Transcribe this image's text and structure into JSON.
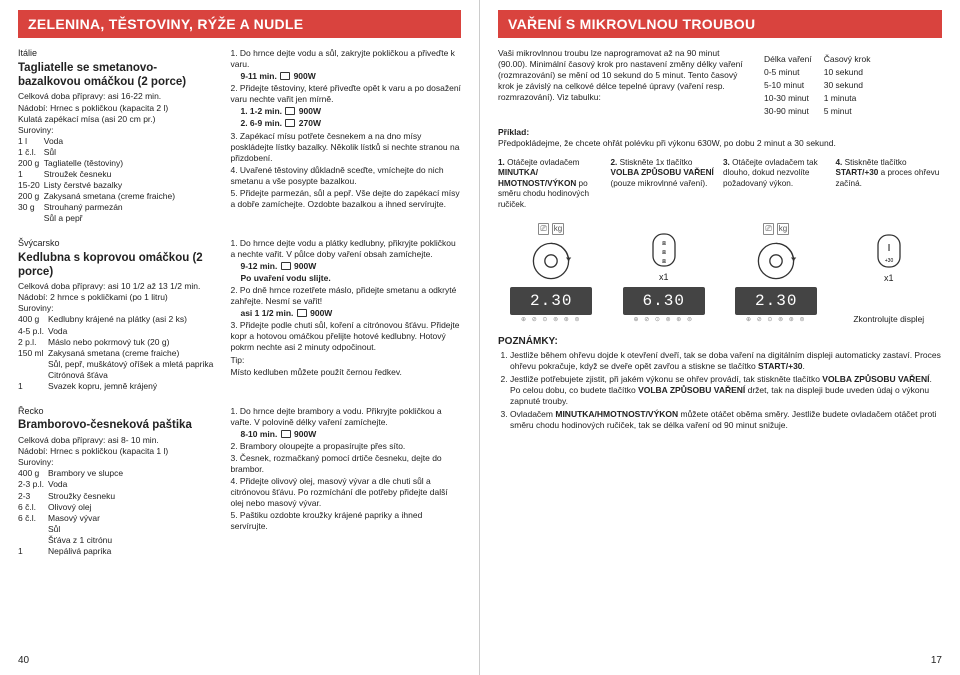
{
  "left": {
    "header": "ZELENINA, TĚSTOVINY, RÝŽE A NUDLE",
    "page_number": "40",
    "recipes": [
      {
        "country": "Itálie",
        "title": "Tagliatelle se smetanovo-bazalkovou omáčkou (2 porce)",
        "prep": "Celková doba přípravy: asi 16-22 min.",
        "tools": "Nádobí: Hrnec s pokličkou (kapacita 2 l)\n     Kulatá zapékací mísa (asi 20 cm pr.)",
        "ing_label": "Suroviny:",
        "ingredients": [
          [
            "1 l",
            "Voda"
          ],
          [
            "1 č.l.",
            "Sůl"
          ],
          [
            "200 g",
            "Tagliatelle (těstoviny)"
          ],
          [
            "1",
            "Stroužek česneku"
          ],
          [
            "15-20",
            "Listy čerstvé bazalky"
          ],
          [
            "200 g",
            "Zakysaná smetana (creme fraiche)"
          ],
          [
            "30 g",
            "Strouhaný parmezán"
          ],
          [
            "",
            "Sůl a pepř"
          ]
        ],
        "steps": [
          "1. Do hrnce dejte vodu a sůl, zakryjte pokličkou a přiveďte k varu.",
          "   9-11 min.  ⧈ 900W",
          "2. Přidejte těstoviny, které přiveďte opět  k varu a po dosažení varu nechte vařit jen mírně.",
          "   1. 1-2 min.  ⧈ 900W",
          "   2. 6-9 min.  ⧈ 270W",
          "3. Zapékací mísu potřete česnekem a na dno mísy poskládejte lístky bazalky. Několik lístků si nechte stranou na přizdobení.",
          "4. Uvařené těstoviny důkladně sceďte, vmíchejte do nich smetanu a vše posypte bazalkou.",
          "5. Přidejte parmezán, sůl a pepř. Vše dejte do zapékací mísy a dobře zamíchejte. Ozdobte bazalkou a ihned servírujte."
        ]
      },
      {
        "country": "Švýcarsko",
        "title": "Kedlubna s koprovou omáčkou (2 porce)",
        "prep": "Celková doba přípravy: asi 10 1/2 až 13 1/2 min.",
        "tools": "Nádobí: 2 hrnce s pokličkami (po 1 litru)",
        "ing_label": "Suroviny:",
        "ingredients": [
          [
            "400 g",
            "Kedlubny krájené na plátky (asi 2 ks)"
          ],
          [
            "4-5 p.l.",
            "Voda"
          ],
          [
            "2 p.l.",
            "Máslo nebo pokrmový tuk (20 g)"
          ],
          [
            "150 ml",
            "Zakysaná smetana (creme fraiche)"
          ],
          [
            "",
            "Sůl, pepř, muškátový oříšek a mletá paprika"
          ],
          [
            "",
            "Citrónová šťáva"
          ],
          [
            "1",
            "Svazek kopru, jemně krájený"
          ]
        ],
        "steps": [
          "1. Do hrnce dejte vodu a plátky kedlubny, přikryjte pokličkou a nechte vařit. V půlce doby vaření obsah zamíchejte.",
          "   9-12 min.  ⧈ 900W",
          "   Po uvaření vodu slijte.",
          "2. Po dně hrnce rozetřete máslo, přidejte smetanu a odkryté zahřejte. Nesmí se vařit!",
          "   asi 1 1/2 min.  ⧈ 900W",
          "3. Přidejte podle chuti sůl, koření a citrónovou šťávu. Přidejte kopr a hotovou omáčkou přelijte hotové kedlubny. Hotový pokrm nechte asi 2 minuty odpočinout.",
          "Tip:",
          "Místo kedluben můžete použít černou ředkev."
        ]
      },
      {
        "country": "Řecko",
        "title": "Bramborovo-česneková paštika",
        "prep": "Celková doba přípravy: asi 8- 10 min.",
        "tools": "Nádobí: Hrnec s pokličkou (kapacita 1 l)",
        "ing_label": "Suroviny:",
        "ingredients": [
          [
            "400 g",
            "Brambory ve slupce"
          ],
          [
            "2-3 p.l.",
            "Voda"
          ],
          [
            "2-3",
            "Stroužky česneku"
          ],
          [
            "6 č.l.",
            "Olivový olej"
          ],
          [
            "6 č.l.",
            "Masový vývar"
          ],
          [
            "",
            "Sůl"
          ],
          [
            "",
            "Šťáva z 1 citrónu"
          ],
          [
            "1",
            "Nepálivá paprika"
          ]
        ],
        "steps": [
          "1. Do hrnce dejte brambory a vodu. Přikryjte pokličkou a vařte. V polovině délky vaření zamíchejte.",
          "   8-10 min.  ⧈ 900W",
          "2. Brambory oloupejte a propasírujte přes síto.",
          "3. Česnek, rozmačkaný pomocí drtiče česneku, dejte do brambor.",
          "4. Přidejte olivový olej, masový vývar a dle chuti sůl a citrónovou šťávu. Po rozmíchání dle potřeby přidejte další olej nebo masový vývar.",
          "5. Paštiku ozdobte kroužky krájené papriky a ihned servírujte."
        ]
      }
    ]
  },
  "right": {
    "header": "VAŘENÍ S MIKROVLNOU TROUBOU",
    "page_number": "17",
    "intro": "Vaši mikrovlnnou troubu lze naprogramovat až na 90 minut (90.00). Minimální časový krok pro nastavení změny délky vaření (rozmrazování) se mění od 10 sekund do 5 minut. Tento časový krok je závislý na celkové délce tepelné úpravy (vaření resp. rozmrazování). Viz tabulku:",
    "table": {
      "h1": "Délka vaření",
      "h2": "Časový krok",
      "rows": [
        [
          "0-5 minut",
          "10 sekund"
        ],
        [
          "5-10 minut",
          "30 sekund"
        ],
        [
          "10-30 minut",
          "1 minuta"
        ],
        [
          "30-90 minut",
          "5 minut"
        ]
      ]
    },
    "example_label": "Příklad:",
    "example_text": "Předpokládejme, že chcete ohřát polévku při výkonu 630W, po dobu 2 minut a 30 sekund.",
    "steps": [
      {
        "n": "1.",
        "t": "Otáčejte ovladačem MINUTKA/HMOTNOST/VÝKON po směru chodu hodinových ručiček."
      },
      {
        "n": "2.",
        "t": "Stiskněte 1x tlačítko VOLBA ZPŮSOBU VAŘENÍ (pouze mikrovlnné vaření)."
      },
      {
        "n": "3.",
        "t": "Otáčejte ovladačem tak dlouho, dokud nezvolíte požadovaný výkon."
      },
      {
        "n": "4.",
        "t": "Stiskněte tlačítko START/+30 a proces ohřevu začíná."
      }
    ],
    "displays": [
      "2.30",
      "6.30",
      "2.30"
    ],
    "check_display": "Zkontrolujte displej",
    "x1": "x1",
    "notes_title": "POZNÁMKY:",
    "notes": [
      "Jestliže během ohřevu dojde k otevření dveří, tak se doba vaření na digitálním displeji automaticky zastaví. Proces ohřevu pokračuje, když se dveře opět zavřou a stiskne se tlačítko START/+30.",
      "Jestliže potřebujete zjistit, při jakém výkonu se ohřev provádí, tak stiskněte tlačítko VOLBA ZPŮSOBU VAŘENÍ. Po celou dobu, co budete tlačítko VOLBA ZPŮSOBU VAŘENÍ držet, tak na displeji bude uveden údaj o výkonu zapnuté trouby.",
      "Ovladačem MINUTKA/HMOTNOST/VÝKON můžete otáčet oběma směry. Jestliže budete ovladačem otáčet proti směru chodu hodinových ručiček, tak se délka vaření od 90 minut snižuje."
    ]
  }
}
